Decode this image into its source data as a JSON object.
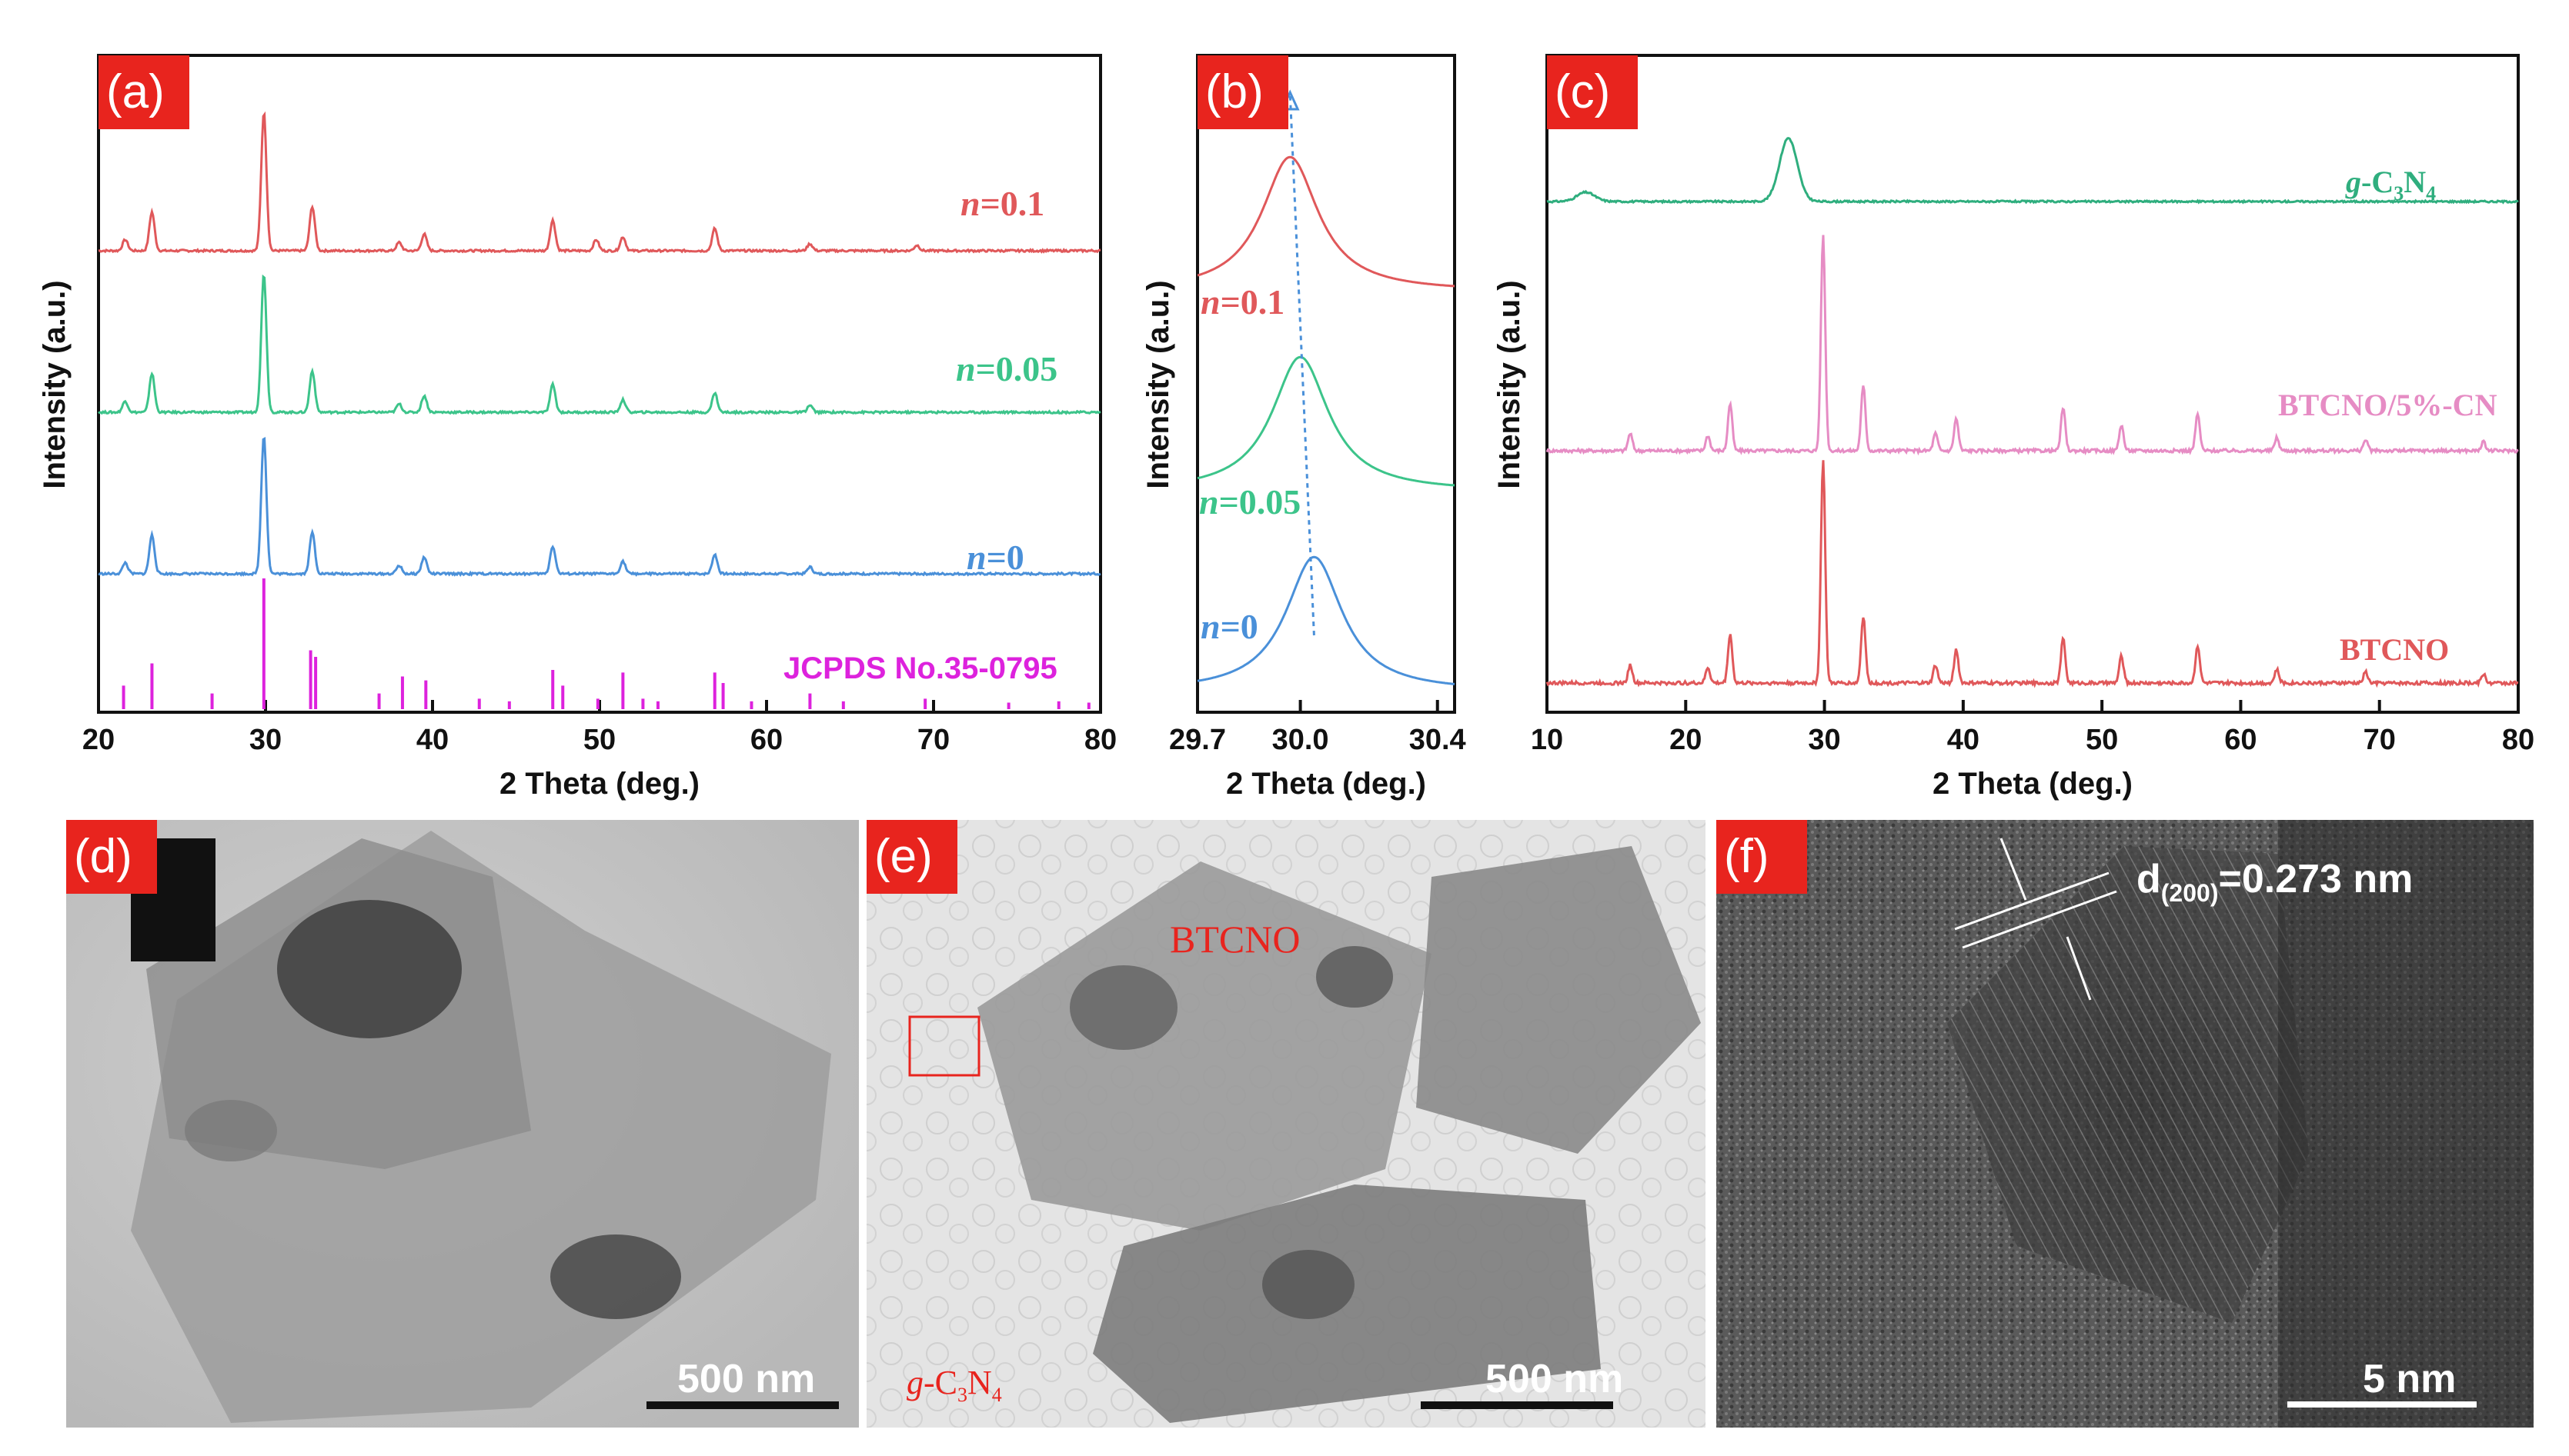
{
  "colors": {
    "red": "#e0585a",
    "green": "#3cc48a",
    "blue": "#4a90d9",
    "magenta": "#dd22dd",
    "teal": "#2fae7e",
    "pink": "#e68cc4",
    "tag_bg": "#e8241e"
  },
  "chart_data": [
    {
      "type": "line",
      "panel": "(a)",
      "xlabel": "2 Theta (deg.)",
      "ylabel": "Intensity (a.u.)",
      "xlim": [
        20,
        80
      ],
      "xticks": [
        "20",
        "30",
        "40",
        "50",
        "60",
        "70",
        "80"
      ],
      "series": [
        {
          "name": "n=0.1",
          "color": "#e0585a",
          "offset": 3,
          "peaks": [
            [
              21.6,
              0.08
            ],
            [
              23.2,
              0.28
            ],
            [
              29.9,
              1.0
            ],
            [
              32.8,
              0.32
            ],
            [
              38.0,
              0.06
            ],
            [
              39.5,
              0.12
            ],
            [
              47.2,
              0.22
            ],
            [
              49.8,
              0.08
            ],
            [
              51.4,
              0.1
            ],
            [
              56.9,
              0.16
            ],
            [
              62.6,
              0.05
            ],
            [
              69.0,
              0.04
            ]
          ]
        },
        {
          "name": "n=0.05",
          "color": "#3cc48a",
          "offset": 2,
          "peaks": [
            [
              21.6,
              0.08
            ],
            [
              23.2,
              0.28
            ],
            [
              29.9,
              1.0
            ],
            [
              32.8,
              0.3
            ],
            [
              38.0,
              0.06
            ],
            [
              39.5,
              0.12
            ],
            [
              47.2,
              0.2
            ],
            [
              51.4,
              0.09
            ],
            [
              56.9,
              0.14
            ],
            [
              62.6,
              0.05
            ]
          ]
        },
        {
          "name": "n=0",
          "color": "#4a90d9",
          "offset": 1,
          "peaks": [
            [
              21.6,
              0.08
            ],
            [
              23.2,
              0.28
            ],
            [
              29.9,
              1.0
            ],
            [
              32.8,
              0.3
            ],
            [
              38.0,
              0.06
            ],
            [
              39.5,
              0.12
            ],
            [
              47.2,
              0.2
            ],
            [
              51.4,
              0.09
            ],
            [
              56.9,
              0.14
            ],
            [
              62.6,
              0.05
            ]
          ]
        }
      ],
      "reference": {
        "name": "JCPDS No.35-0795",
        "color": "#dd22dd",
        "lines": [
          [
            21.5,
            0.18
          ],
          [
            23.2,
            0.35
          ],
          [
            26.8,
            0.12
          ],
          [
            29.9,
            1.0
          ],
          [
            32.7,
            0.45
          ],
          [
            33.0,
            0.4
          ],
          [
            36.8,
            0.12
          ],
          [
            38.2,
            0.25
          ],
          [
            39.6,
            0.22
          ],
          [
            42.8,
            0.08
          ],
          [
            44.6,
            0.06
          ],
          [
            47.2,
            0.3
          ],
          [
            47.8,
            0.18
          ],
          [
            49.9,
            0.08
          ],
          [
            51.4,
            0.28
          ],
          [
            52.6,
            0.08
          ],
          [
            53.5,
            0.06
          ],
          [
            56.9,
            0.28
          ],
          [
            57.4,
            0.2
          ],
          [
            59.1,
            0.06
          ],
          [
            62.6,
            0.12
          ],
          [
            64.6,
            0.06
          ],
          [
            69.5,
            0.08
          ],
          [
            74.5,
            0.05
          ],
          [
            77.5,
            0.06
          ],
          [
            79.3,
            0.05
          ]
        ]
      }
    },
    {
      "type": "line",
      "panel": "(b)",
      "xlabel": "2 Theta (deg.)",
      "ylabel": "Intensity (a.u.)",
      "xlim": [
        29.7,
        30.45
      ],
      "xticks": [
        "29.7",
        "30.0",
        "30.4"
      ],
      "xtick_values": [
        29.7,
        30.0,
        30.4
      ],
      "series": [
        {
          "name": "n=0.1",
          "color": "#e0585a",
          "center": 29.97,
          "offset": 3
        },
        {
          "name": "n=0.05",
          "color": "#3cc48a",
          "center": 30.0,
          "offset": 2
        },
        {
          "name": "n=0",
          "color": "#4a90d9",
          "center": 30.04,
          "offset": 1
        }
      ],
      "guide": {
        "from": 29.97,
        "to": 30.04,
        "color": "#4a90d9"
      }
    },
    {
      "type": "line",
      "panel": "(c)",
      "xlabel": "2 Theta (deg.)",
      "ylabel": "Intensity (a.u.)",
      "xlim": [
        10,
        80
      ],
      "xticks": [
        "10",
        "20",
        "30",
        "40",
        "50",
        "60",
        "70",
        "80"
      ],
      "series": [
        {
          "name": "g-C3N4",
          "color": "#2fae7e",
          "offset": 3,
          "peaks": [
            [
              12.8,
              0.08
            ],
            [
              27.4,
              0.55
            ]
          ]
        },
        {
          "name": "BTCNO/5%-CN",
          "color": "#e68cc4",
          "offset": 2,
          "peaks": [
            [
              16.0,
              0.08
            ],
            [
              21.6,
              0.07
            ],
            [
              23.2,
              0.22
            ],
            [
              29.9,
              1.0
            ],
            [
              32.8,
              0.3
            ],
            [
              38.0,
              0.08
            ],
            [
              39.5,
              0.15
            ],
            [
              47.2,
              0.2
            ],
            [
              51.4,
              0.12
            ],
            [
              56.9,
              0.17
            ],
            [
              62.6,
              0.06
            ],
            [
              69.0,
              0.05
            ],
            [
              77.5,
              0.04
            ]
          ]
        },
        {
          "name": "BTCNO",
          "color": "#e0585a",
          "offset": 1,
          "peaks": [
            [
              16.0,
              0.08
            ],
            [
              21.6,
              0.07
            ],
            [
              23.2,
              0.22
            ],
            [
              29.9,
              1.0
            ],
            [
              32.8,
              0.3
            ],
            [
              38.0,
              0.08
            ],
            [
              39.5,
              0.15
            ],
            [
              47.2,
              0.2
            ],
            [
              51.4,
              0.12
            ],
            [
              56.9,
              0.17
            ],
            [
              62.6,
              0.06
            ],
            [
              69.0,
              0.05
            ],
            [
              77.5,
              0.04
            ]
          ]
        }
      ]
    }
  ],
  "labels": {
    "a": {
      "tag": "(a)",
      "n01": "n",
      "n01_val": "=0.1",
      "n005": "n",
      "n005_val": "=0.05",
      "n0": "n",
      "n0_val": "=0",
      "ref": "JCPDS No.35-0795"
    },
    "b": {
      "tag": "(b)",
      "n01": "n",
      "n01_val": "=0.1",
      "n005": "n",
      "n005_val": "=0.05",
      "n0": "n",
      "n0_val": "=0"
    },
    "c": {
      "tag": "(c)",
      "gcn_g": "g",
      "gcn_rest": "-C",
      "gcn_sub3": "3",
      "gcn_N": "N",
      "gcn_sub4": "4",
      "btcno_cn": "BTCNO/5%-CN",
      "btcno": "BTCNO"
    },
    "d": {
      "tag": "(d)",
      "scale": "500 nm"
    },
    "e": {
      "tag": "(e)",
      "particle": "BTCNO",
      "gcn_g": "g",
      "gcn_rest": "-C",
      "gcn_sub3": "3",
      "gcn_N": "N",
      "gcn_sub4": "4",
      "scale": "500 nm"
    },
    "f": {
      "tag": "(f)",
      "d_prefix": "d",
      "d_sub": "(200)",
      "d_value": "=0.273 nm",
      "scale": "5 nm"
    }
  }
}
